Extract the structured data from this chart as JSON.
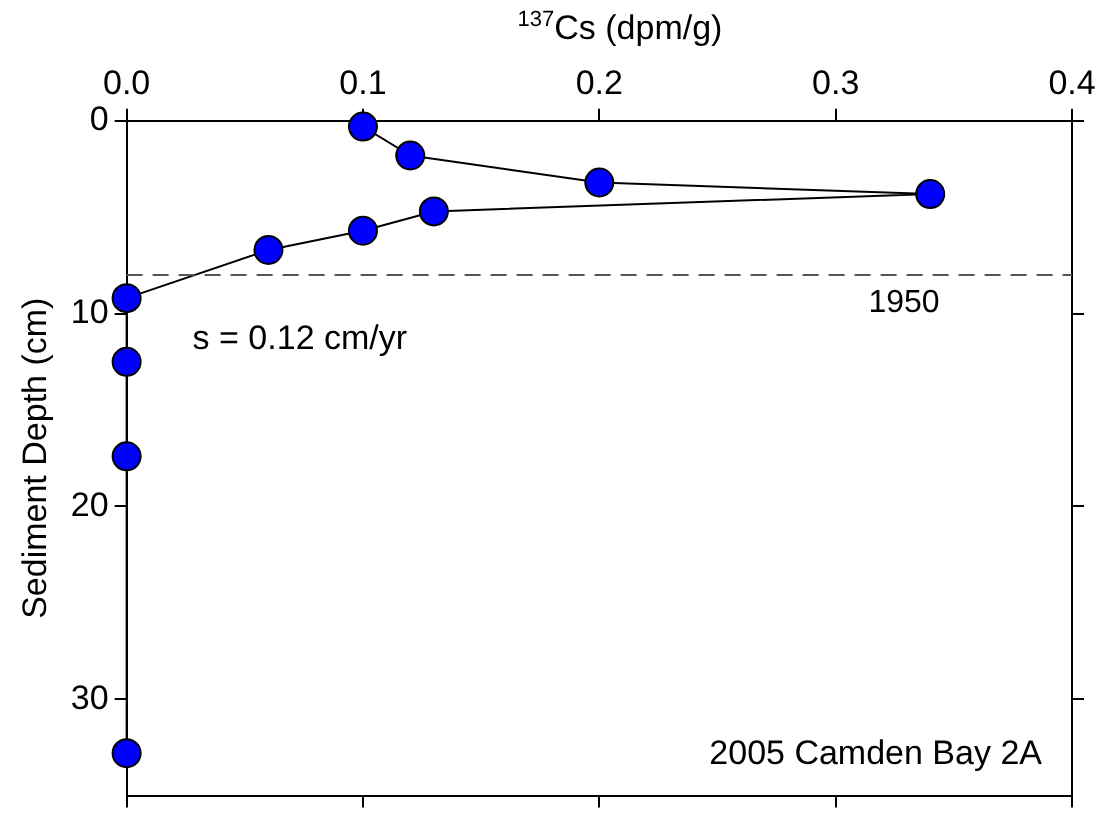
{
  "chart_data": {
    "type": "scatter",
    "xlabel": "$^{137}$Cs (dpm/g)",
    "ylabel": "Sediment Depth (cm)",
    "x": [
      0.1,
      0.12,
      0.2,
      0.34,
      0.13,
      0.1,
      0.06,
      0,
      0,
      0,
      0
    ],
    "series": [
      {
        "color": "#0000ff",
        "values": [
          0.3,
          1.8,
          3.2,
          3.8,
          4.7,
          5.7,
          6.7,
          9.2,
          12.5,
          17.4,
          32.8
        ]
      }
    ],
    "xlim": [
      0,
      0.4
    ],
    "xticks": [
      {
        "value": 0,
        "label": "0.0"
      },
      0.1,
      0.2,
      0.3,
      0.4
    ],
    "ylim": [
      35,
      0
    ],
    "yticks": [
      0,
      10,
      20,
      30
    ],
    "marker": "circle",
    "line_style": "solid",
    "grid": false,
    "legend": false,
    "ref_lines": [
      {
        "axis": "y",
        "value": 8,
        "line_style": "dashed",
        "color": "#555555"
      }
    ],
    "annotations": [
      "s = 0.12 cm/yr",
      "2005 Camden Bay 2A",
      "1950"
    ]
  }
}
